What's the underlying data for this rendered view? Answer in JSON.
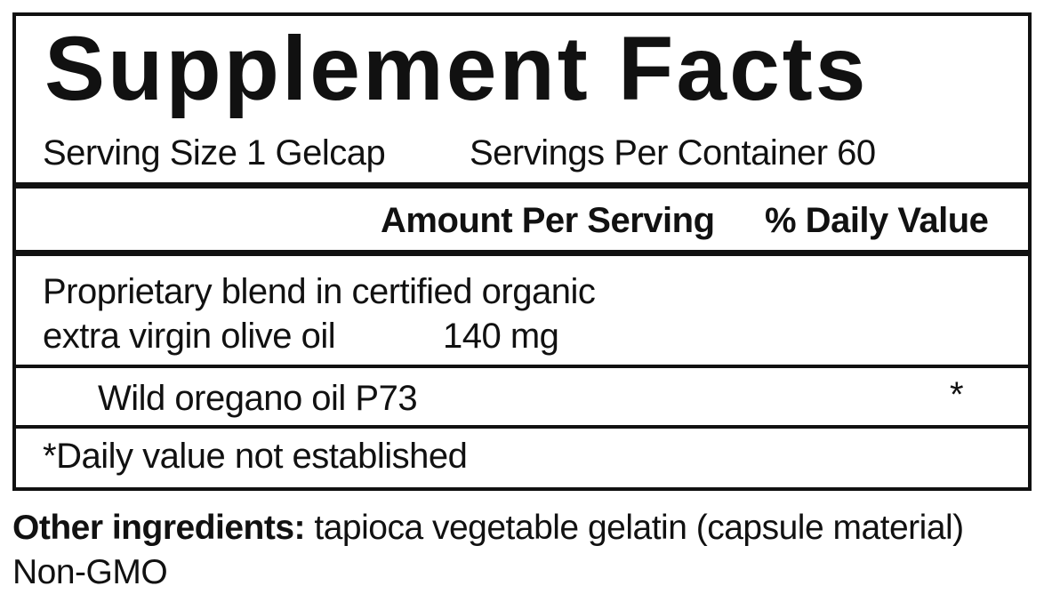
{
  "title": "Supplement Facts",
  "serving": {
    "size": "Serving Size 1 Gelcap",
    "per_container": "Servings Per Container 60"
  },
  "header": {
    "amount": "Amount Per Serving",
    "daily_value": "% Daily Value"
  },
  "rows": [
    {
      "name": "Proprietary blend in certified organic",
      "name_line2": "extra virgin olive oil",
      "amount": "140 mg"
    },
    {
      "name": "Wild oregano oil P73",
      "daily_value": "*"
    }
  ],
  "footnote": "*Daily value not established",
  "other_ingredients": {
    "label": "Other ingredients:",
    "text": "tapioca vegetable gelatin (capsule material)",
    "note": "Non-GMO"
  }
}
